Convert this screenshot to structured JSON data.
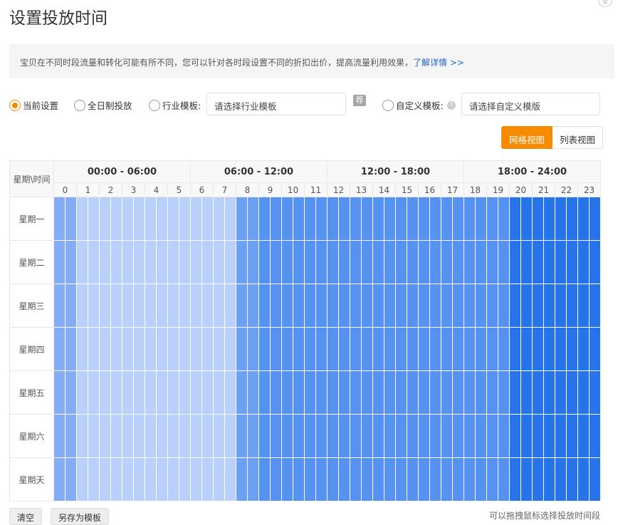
{
  "title": "设置投放时间",
  "notice": {
    "text": "宝贝在不同时段流量和转化可能有所不同，您可以针对各时段设置不同的折扣出价，提高流量利用效果，",
    "link": "了解详情 >>"
  },
  "options": {
    "current": "当前设置",
    "allday": "全日制投放",
    "industry": "行业模板:",
    "industry_placeholder": "请选择行业模板",
    "recommend": "荐",
    "custom": "自定义模板:",
    "help": "?",
    "custom_placeholder": "请选择自定义模版",
    "selected": "current"
  },
  "views": {
    "grid": "网格视图",
    "list": "列表视图",
    "active": "grid"
  },
  "table": {
    "corner": "星期\\时间",
    "groups": [
      "00:00 - 06:00",
      "06:00 - 12:00",
      "12:00 - 18:00",
      "18:00 - 24:00"
    ],
    "hours": [
      "0",
      "1",
      "2",
      "3",
      "4",
      "5",
      "6",
      "7",
      "8",
      "9",
      "10",
      "11",
      "12",
      "13",
      "14",
      "15",
      "16",
      "17",
      "18",
      "19",
      "20",
      "21",
      "22",
      "23"
    ],
    "days": [
      "星期一",
      "星期二",
      "星期三",
      "星期四",
      "星期五",
      "星期六",
      "星期天"
    ],
    "hour_levels": [
      2,
      1,
      1,
      1,
      1,
      1,
      1,
      1,
      3,
      4,
      4,
      4,
      4,
      4,
      4,
      4,
      4,
      4,
      4,
      4,
      5,
      5,
      5,
      5
    ],
    "level_colors": {
      "1": "#b8d0fa",
      "2": "#84adf5",
      "3": "#6ca0f2",
      "4": "#5593f1",
      "5": "#2673ea"
    }
  },
  "footer": {
    "clear": "清空",
    "save_template": "另存为模板",
    "hint": "可以拖拽鼠标选择投放时间段"
  }
}
